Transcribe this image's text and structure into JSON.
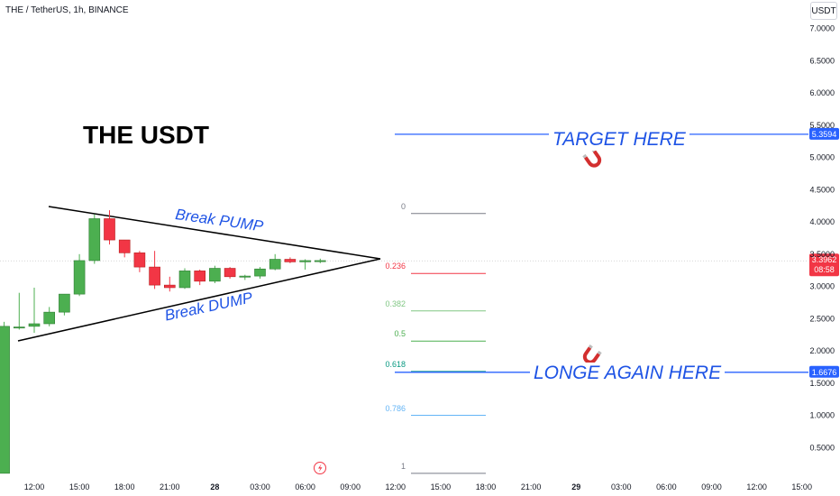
{
  "header": {
    "symbol_line": "THE / TetherUS, 1h, BINANCE",
    "currency": "USDT"
  },
  "annotations": {
    "title": "THE USDT",
    "break_pump": "Break PUMP",
    "break_dump": "Break DUMP",
    "target": "TARGET HERE",
    "long_again": "LONGE AGAIN HERE"
  },
  "colors": {
    "up": "#4caf50",
    "down": "#f23645",
    "annotation_blue": "#1e53e5",
    "current_price_badge": "#f23645",
    "level_badge": "#2962ff"
  },
  "fib_levels": [
    {
      "label": "0",
      "price": 4.13,
      "color": "#787b86"
    },
    {
      "label": "0.236",
      "price": 3.2,
      "color": "#f23645"
    },
    {
      "label": "0.382",
      "price": 2.62,
      "color": "#81c784"
    },
    {
      "label": "0.5",
      "price": 2.15,
      "color": "#4caf50"
    },
    {
      "label": "0.618",
      "price": 1.68,
      "color": "#089981"
    },
    {
      "label": "0.786",
      "price": 1.0,
      "color": "#64b5f6"
    },
    {
      "label": "1",
      "price": 0.1,
      "color": "#787b86"
    }
  ],
  "chart_data": {
    "type": "candlestick",
    "ylim": [
      0.0,
      7.4
    ],
    "y_ticks": [
      "7.0000",
      "6.5000",
      "6.0000",
      "5.5000",
      "5.0000",
      "4.5000",
      "4.0000",
      "3.5000",
      "3.0000",
      "2.5000",
      "2.0000",
      "1.5000",
      "1.0000",
      "0.5000"
    ],
    "y_tick_values": [
      7.0,
      6.5,
      6.0,
      5.5,
      5.0,
      4.5,
      4.0,
      3.5,
      3.0,
      2.5,
      2.0,
      1.5,
      1.0,
      0.5
    ],
    "x_ticks": [
      "12:00",
      "15:00",
      "18:00",
      "21:00",
      "28",
      "03:00",
      "06:00",
      "09:00",
      "12:00",
      "15:00",
      "18:00",
      "21:00",
      "29",
      "03:00",
      "06:00",
      "09:00",
      "12:00",
      "15:00"
    ],
    "x_tick_hours": [
      12,
      15,
      18,
      21,
      24,
      27,
      30,
      33,
      36,
      39,
      42,
      45,
      48,
      51,
      54,
      57,
      60,
      63
    ],
    "bold_ticks": [
      "28",
      "29"
    ],
    "candles_start_hour": 10,
    "candles": [
      {
        "o": 0.1,
        "h": 2.45,
        "l": 0.1,
        "c": 2.38
      },
      {
        "o": 2.37,
        "h": 2.9,
        "l": 2.33,
        "c": 2.37
      },
      {
        "o": 2.38,
        "h": 2.98,
        "l": 2.28,
        "c": 2.42
      },
      {
        "o": 2.42,
        "h": 2.68,
        "l": 2.38,
        "c": 2.6
      },
      {
        "o": 2.6,
        "h": 2.88,
        "l": 2.55,
        "c": 2.88
      },
      {
        "o": 2.88,
        "h": 3.5,
        "l": 2.85,
        "c": 3.4
      },
      {
        "o": 3.4,
        "h": 4.12,
        "l": 3.35,
        "c": 4.05
      },
      {
        "o": 4.05,
        "h": 4.18,
        "l": 3.65,
        "c": 3.72
      },
      {
        "o": 3.72,
        "h": 3.72,
        "l": 3.45,
        "c": 3.52
      },
      {
        "o": 3.52,
        "h": 3.55,
        "l": 3.22,
        "c": 3.3
      },
      {
        "o": 3.3,
        "h": 3.55,
        "l": 2.96,
        "c": 3.02
      },
      {
        "o": 3.02,
        "h": 3.15,
        "l": 2.92,
        "c": 2.98
      },
      {
        "o": 2.98,
        "h": 3.28,
        "l": 2.96,
        "c": 3.24
      },
      {
        "o": 3.24,
        "h": 3.26,
        "l": 3.02,
        "c": 3.08
      },
      {
        "o": 3.08,
        "h": 3.32,
        "l": 3.05,
        "c": 3.28
      },
      {
        "o": 3.28,
        "h": 3.3,
        "l": 3.12,
        "c": 3.15
      },
      {
        "o": 3.15,
        "h": 3.18,
        "l": 3.1,
        "c": 3.16
      },
      {
        "o": 3.16,
        "h": 3.3,
        "l": 3.12,
        "c": 3.27
      },
      {
        "o": 3.27,
        "h": 3.5,
        "l": 3.25,
        "c": 3.42
      },
      {
        "o": 3.42,
        "h": 3.45,
        "l": 3.36,
        "c": 3.38
      },
      {
        "o": 3.38,
        "h": 3.42,
        "l": 3.26,
        "c": 3.4
      },
      {
        "o": 3.4,
        "h": 3.43,
        "l": 3.36,
        "c": 3.4
      }
    ],
    "current_price": 3.3962,
    "current_price_label": "3.3962",
    "countdown": "08:58",
    "target_price": 5.3594,
    "target_price_label": "5.3594",
    "long_price": 1.6676,
    "long_price_label": "1.6676"
  }
}
